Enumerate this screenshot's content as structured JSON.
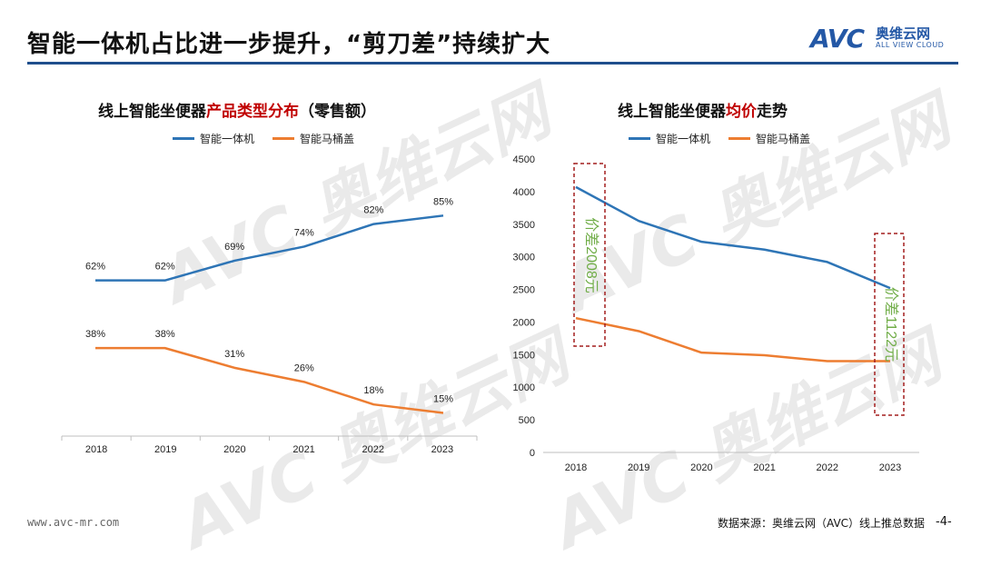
{
  "header": {
    "title": "智能一体机占比进一步提升，“剪刀差”持续扩大",
    "logo_mark": "AVC",
    "logo_cn": "奥维云网",
    "logo_en": "ALL VIEW CLOUD"
  },
  "footer": {
    "url": "www.avc-mr.com",
    "source": "数据来源：奥维云网（AVC）线上推总数据",
    "page": "-4-"
  },
  "colors": {
    "blue": "#2e75b6",
    "orange": "#ed7d31",
    "green": "#70ad47",
    "red": "#c00000",
    "brand": "#1f4e8c"
  },
  "chart_data": [
    {
      "type": "line",
      "title_parts": [
        "线上智能坐便器",
        "产品类型分布",
        "（零售额）"
      ],
      "categories": [
        "2018",
        "2019",
        "2020",
        "2021",
        "2022",
        "2023"
      ],
      "ylim": [
        0,
        100
      ],
      "series": [
        {
          "name": "智能一体机",
          "color": "#2e75b6",
          "values": [
            62,
            62,
            69,
            74,
            82,
            85
          ],
          "labels": [
            "62%",
            "62%",
            "69%",
            "74%",
            "82%",
            "85%"
          ]
        },
        {
          "name": "智能马桶盖",
          "color": "#ed7d31",
          "values": [
            38,
            38,
            31,
            26,
            18,
            15
          ],
          "labels": [
            "38%",
            "38%",
            "31%",
            "26%",
            "18%",
            "15%"
          ]
        }
      ]
    },
    {
      "type": "line",
      "title_parts": [
        "线上智能坐便器",
        "均价",
        "走势"
      ],
      "categories": [
        "2018",
        "2019",
        "2020",
        "2021",
        "2022",
        "2023"
      ],
      "ylim": [
        0,
        4500
      ],
      "yticks": [
        "0",
        "500",
        "1000",
        "1500",
        "2000",
        "2500",
        "3000",
        "3500",
        "4000",
        "4500"
      ],
      "series": [
        {
          "name": "智能一体机",
          "color": "#2e75b6",
          "values": [
            4070,
            3550,
            3230,
            3110,
            2920,
            2520
          ]
        },
        {
          "name": "智能马桶盖",
          "color": "#ed7d31",
          "values": [
            2060,
            1860,
            1530,
            1490,
            1400,
            1400
          ]
        }
      ],
      "annotations": [
        {
          "text": "价差2008元",
          "category": "2018"
        },
        {
          "text": "价差1122元",
          "category": "2023"
        }
      ]
    }
  ]
}
